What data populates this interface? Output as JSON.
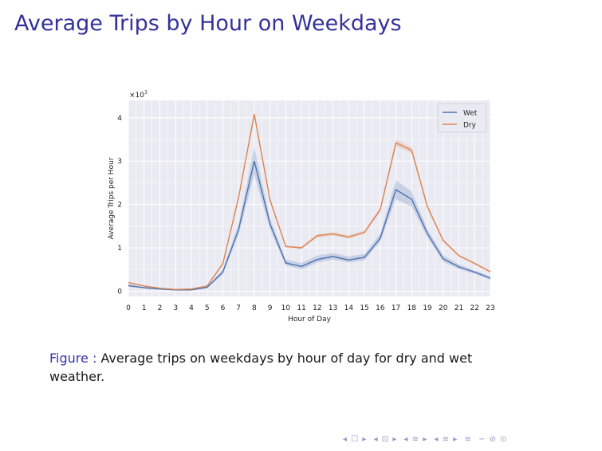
{
  "slide": {
    "title": "Average Trips by Hour on Weekdays"
  },
  "caption": {
    "label": "Figure :",
    "text": "Average trips on weekdays by hour of day for dry and wet weather."
  },
  "nav": {
    "symbols": [
      "◂ ☐ ▸",
      "◂ ⊡ ▸",
      "◂ ≡ ▸",
      "◂ ≡ ▸",
      "≡",
      "∽ ⊘ ⊙"
    ]
  },
  "chart_data": {
    "type": "line",
    "title": "",
    "xlabel": "Hour of Day",
    "ylabel": "Average Trips per Hour",
    "y_multiplier_label": "×10",
    "y_multiplier_exp": "3",
    "x": [
      0,
      1,
      2,
      3,
      4,
      5,
      6,
      7,
      8,
      9,
      10,
      11,
      12,
      13,
      14,
      15,
      16,
      17,
      18,
      19,
      20,
      21,
      22,
      23
    ],
    "xlim": [
      0,
      23
    ],
    "ylim": [
      -0.12,
      4.4
    ],
    "yticks": [
      0,
      1,
      2,
      3,
      4
    ],
    "grid": true,
    "legend_position": "top-right",
    "series": [
      {
        "name": "Wet",
        "color": "#4c72b0",
        "values": [
          0.13,
          0.08,
          0.05,
          0.03,
          0.03,
          0.09,
          0.44,
          1.42,
          3.0,
          1.55,
          0.65,
          0.57,
          0.73,
          0.8,
          0.72,
          0.78,
          1.22,
          2.34,
          2.12,
          1.33,
          0.75,
          0.56,
          0.44,
          0.3
        ],
        "ci_lower": [
          0.1,
          0.06,
          0.04,
          0.02,
          0.02,
          0.07,
          0.38,
          1.3,
          2.68,
          1.42,
          0.6,
          0.5,
          0.66,
          0.73,
          0.66,
          0.71,
          1.14,
          2.12,
          1.95,
          1.24,
          0.68,
          0.51,
          0.4,
          0.26
        ],
        "ci_upper": [
          0.16,
          0.1,
          0.07,
          0.05,
          0.05,
          0.11,
          0.5,
          1.55,
          3.32,
          1.68,
          0.73,
          0.65,
          0.82,
          0.88,
          0.8,
          0.86,
          1.32,
          2.56,
          2.3,
          1.43,
          0.83,
          0.62,
          0.48,
          0.34
        ]
      },
      {
        "name": "Dry",
        "color": "#dd8452",
        "values": [
          0.2,
          0.12,
          0.07,
          0.04,
          0.05,
          0.12,
          0.63,
          2.16,
          4.08,
          2.1,
          1.03,
          1.0,
          1.28,
          1.32,
          1.25,
          1.36,
          1.88,
          3.42,
          3.25,
          1.95,
          1.17,
          0.82,
          0.64,
          0.45
        ],
        "ci_lower": [
          0.18,
          0.11,
          0.06,
          0.04,
          0.04,
          0.11,
          0.6,
          2.1,
          4.0,
          2.05,
          1.0,
          0.97,
          1.24,
          1.28,
          1.21,
          1.32,
          1.83,
          3.34,
          3.18,
          1.9,
          1.14,
          0.8,
          0.62,
          0.43
        ],
        "ci_upper": [
          0.22,
          0.13,
          0.08,
          0.05,
          0.06,
          0.13,
          0.66,
          2.22,
          4.14,
          2.15,
          1.06,
          1.03,
          1.32,
          1.36,
          1.29,
          1.4,
          1.93,
          3.5,
          3.32,
          2.0,
          1.2,
          0.84,
          0.66,
          0.47
        ]
      }
    ]
  }
}
